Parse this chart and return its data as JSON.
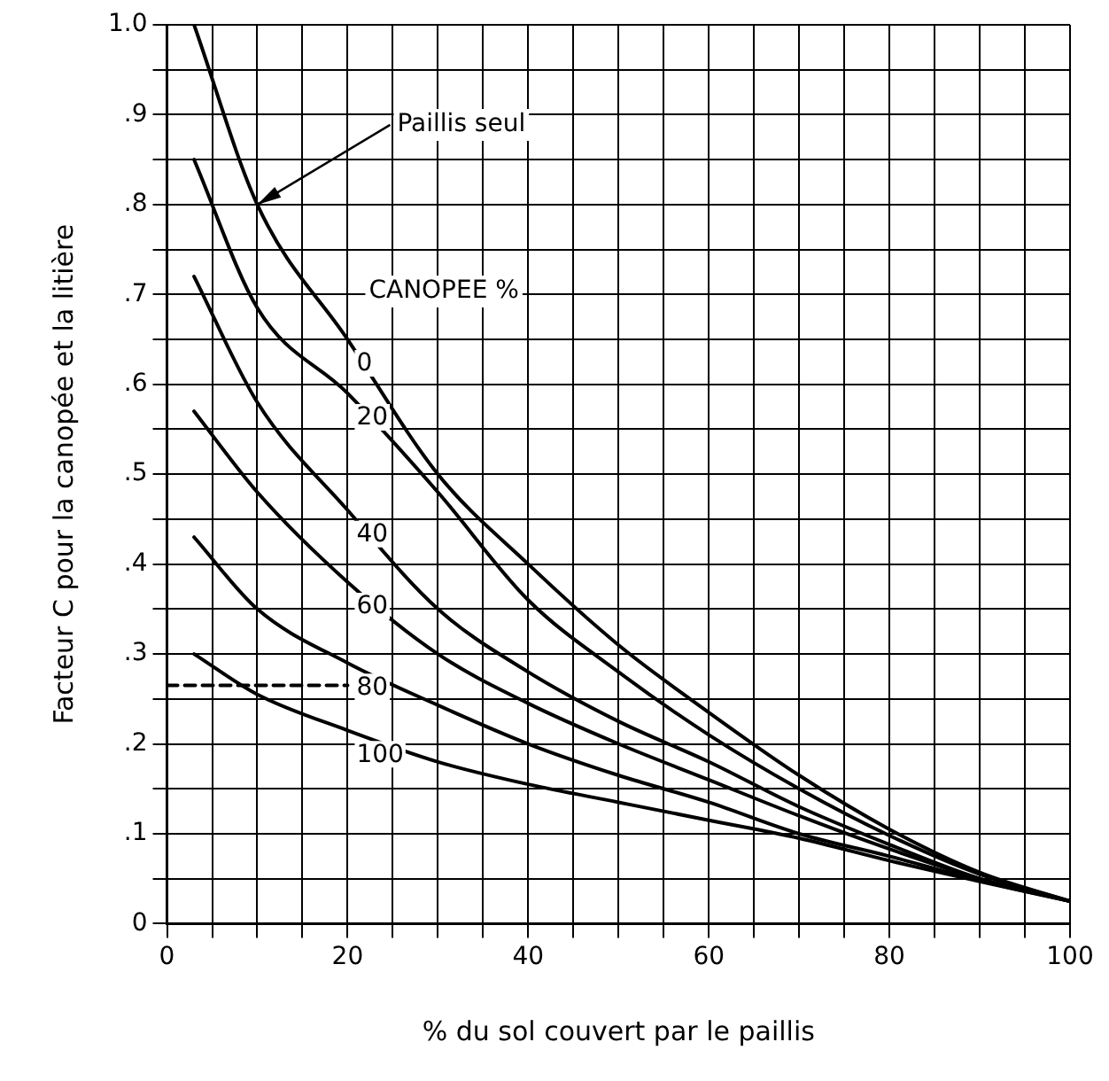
{
  "chart_data": {
    "type": "line",
    "xlabel": "% du sol couvert par le paillis",
    "ylabel": "Facteur C pour la canopée et la litière",
    "legend_title": "CANOPEE %",
    "x": [
      3,
      10,
      20,
      30,
      40,
      50,
      60,
      70,
      80,
      90,
      100
    ],
    "series": [
      {
        "name": "0",
        "color": "#000000",
        "values": [
          1.0,
          0.8,
          0.65,
          0.5,
          0.4,
          0.31,
          0.235,
          0.165,
          0.105,
          0.057,
          0.025
        ]
      },
      {
        "name": "20",
        "color": "#000000",
        "values": [
          0.85,
          0.685,
          0.59,
          0.48,
          0.36,
          0.28,
          0.21,
          0.15,
          0.098,
          0.055,
          0.025
        ]
      },
      {
        "name": "40",
        "color": "#000000",
        "values": [
          0.72,
          0.58,
          0.46,
          0.35,
          0.28,
          0.225,
          0.18,
          0.13,
          0.088,
          0.05,
          0.025
        ]
      },
      {
        "name": "60",
        "color": "#000000",
        "values": [
          0.57,
          0.48,
          0.38,
          0.3,
          0.245,
          0.2,
          0.16,
          0.12,
          0.083,
          0.05,
          0.025
        ]
      },
      {
        "name": "80",
        "color": "#000000",
        "values": [
          0.43,
          0.35,
          0.29,
          0.243,
          0.2,
          0.165,
          0.135,
          0.1,
          0.075,
          0.048,
          0.025
        ]
      },
      {
        "name": "100",
        "color": "#000000",
        "values": [
          0.3,
          0.255,
          0.215,
          0.18,
          0.155,
          0.135,
          0.115,
          0.095,
          0.07,
          0.047,
          0.025
        ]
      },
      {
        "type": "line",
        "x": [
          0,
          20
        ],
        "values": [
          0.265,
          0.265
        ],
        "color": "#000000",
        "line_style": "dashed"
      }
    ],
    "annotations": [
      {
        "text": "Paillis seul",
        "x": 10,
        "y": 0.8
      }
    ],
    "xlim": [
      0,
      100
    ],
    "ylim": [
      0,
      1
    ],
    "xticks": [
      0,
      {
        "value": 5,
        "label": null
      },
      {
        "value": 10,
        "label": null
      },
      {
        "value": 15,
        "label": null
      },
      20,
      {
        "value": 25,
        "label": null
      },
      {
        "value": 30,
        "label": null
      },
      {
        "value": 35,
        "label": null
      },
      40,
      {
        "value": 45,
        "label": null
      },
      {
        "value": 50,
        "label": null
      },
      {
        "value": 55,
        "label": null
      },
      60,
      {
        "value": 65,
        "label": null
      },
      {
        "value": 70,
        "label": null
      },
      {
        "value": 75,
        "label": null
      },
      80,
      {
        "value": 85,
        "label": null
      },
      {
        "value": 90,
        "label": null
      },
      {
        "value": 95,
        "label": null
      },
      100
    ],
    "yticks": [
      {
        "value": 0,
        "label": "0"
      },
      {
        "value": 0.05,
        "label": null
      },
      {
        "value": 0.1,
        "label": ".1"
      },
      {
        "value": 0.15,
        "label": null
      },
      {
        "value": 0.2,
        "label": ".2"
      },
      {
        "value": 0.25,
        "label": null
      },
      {
        "value": 0.3,
        "label": ".3"
      },
      {
        "value": 0.35,
        "label": null
      },
      {
        "value": 0.4,
        "label": ".4"
      },
      {
        "value": 0.45,
        "label": null
      },
      {
        "value": 0.5,
        "label": ".5"
      },
      {
        "value": 0.55,
        "label": null
      },
      {
        "value": 0.6,
        "label": ".6"
      },
      {
        "value": 0.65,
        "label": null
      },
      {
        "value": 0.7,
        "label": ".7"
      },
      {
        "value": 0.75,
        "label": null
      },
      {
        "value": 0.8,
        "label": ".8"
      },
      {
        "value": 0.85,
        "label": null
      },
      {
        "value": 0.9,
        "label": ".9"
      },
      {
        "value": 0.95,
        "label": null
      },
      {
        "value": 1,
        "label": "1.0"
      }
    ],
    "grid": true,
    "legend": false,
    "marker": "none",
    "line_style": "solid"
  }
}
